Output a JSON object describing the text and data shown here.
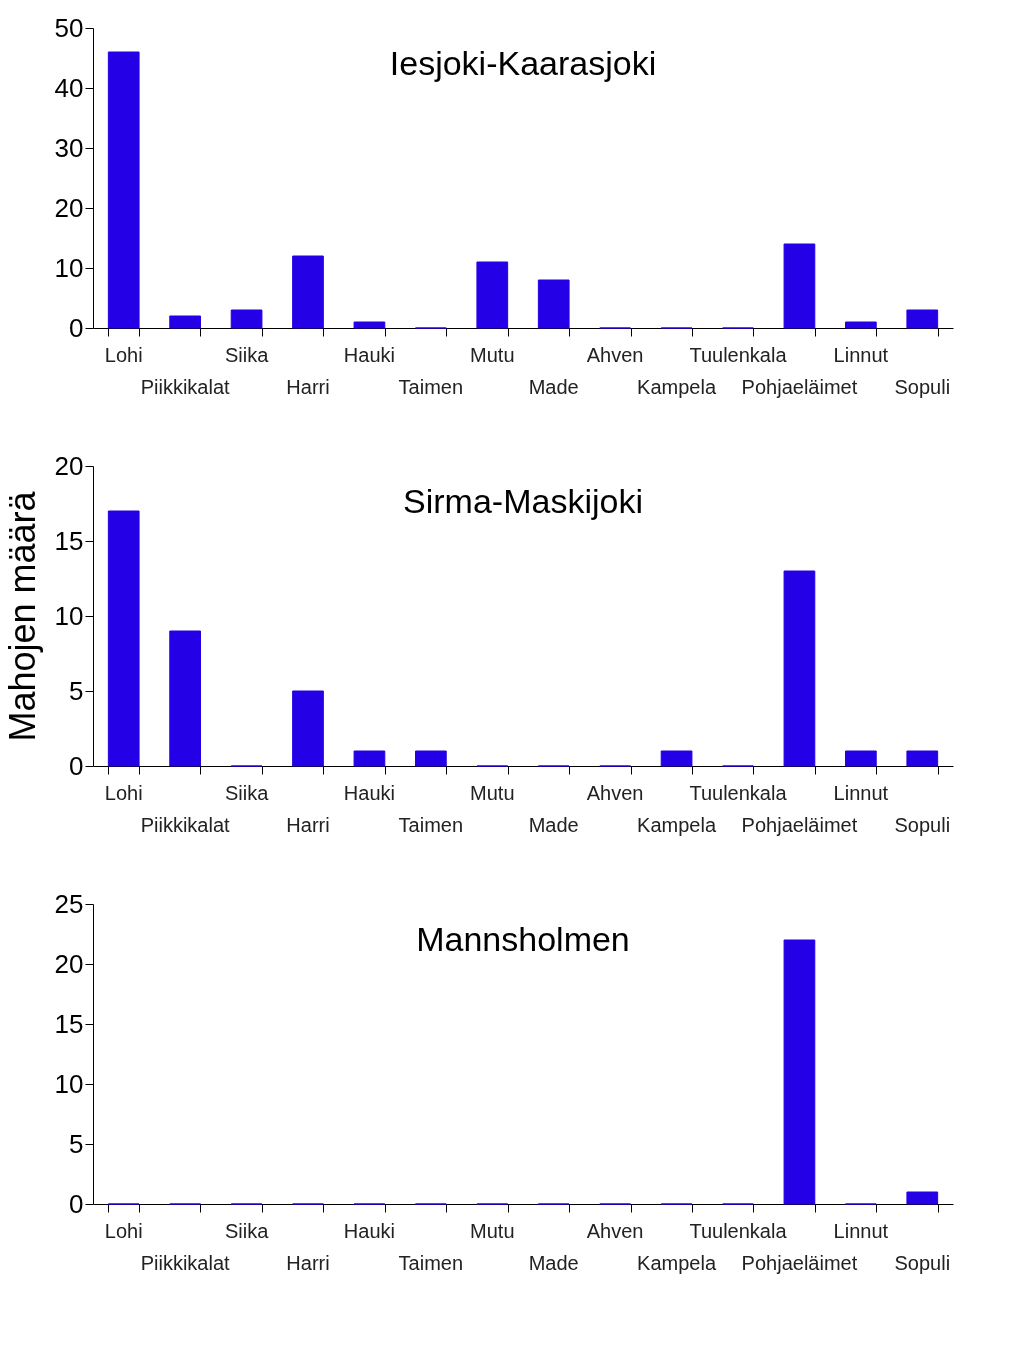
{
  "chart_data": [
    {
      "type": "bar",
      "title": "Iesjoki-Kaarasjoki",
      "categories": [
        "Lohi",
        "Piikkikalat",
        "Siika",
        "Harri",
        "Hauki",
        "Taimen",
        "Mutu",
        "Made",
        "Ahven",
        "Kampela",
        "Tuulenkala",
        "Pohjaeläimet",
        "Linnut",
        "Sopuli"
      ],
      "values": [
        46,
        2,
        3,
        12,
        1,
        0,
        11,
        8,
        0,
        0,
        0,
        14,
        1,
        3
      ],
      "color": "#2400e6",
      "ylim": [
        0,
        50
      ],
      "yticks": [
        0,
        10,
        20,
        30,
        40,
        50
      ],
      "grid": false
    },
    {
      "type": "bar",
      "title": "Sirma-Maskijoki",
      "ylabel": "Mahojen määrä",
      "categories": [
        "Lohi",
        "Piikkikalat",
        "Siika",
        "Harri",
        "Hauki",
        "Taimen",
        "Mutu",
        "Made",
        "Ahven",
        "Kampela",
        "Tuulenkala",
        "Pohjaeläimet",
        "Linnut",
        "Sopuli"
      ],
      "values": [
        17,
        9,
        0,
        5,
        1,
        1,
        0,
        0,
        0,
        1,
        0,
        13,
        1,
        1
      ],
      "color": "#2400e6",
      "ylim": [
        0,
        20
      ],
      "yticks": [
        0,
        5,
        10,
        15,
        20
      ],
      "grid": false
    },
    {
      "type": "bar",
      "title": "Mannsholmen",
      "categories": [
        "Lohi",
        "Piikkikalat",
        "Siika",
        "Harri",
        "Hauki",
        "Taimen",
        "Mutu",
        "Made",
        "Ahven",
        "Kampela",
        "Tuulenkala",
        "Pohjaeläimet",
        "Linnut",
        "Sopuli"
      ],
      "values": [
        0,
        0,
        0,
        0,
        0,
        0,
        0,
        0,
        0,
        0,
        0,
        22,
        0,
        1
      ],
      "color": "#2400e6",
      "ylim": [
        0,
        25
      ],
      "yticks": [
        0,
        5,
        10,
        15,
        20,
        25
      ],
      "grid": false
    }
  ]
}
